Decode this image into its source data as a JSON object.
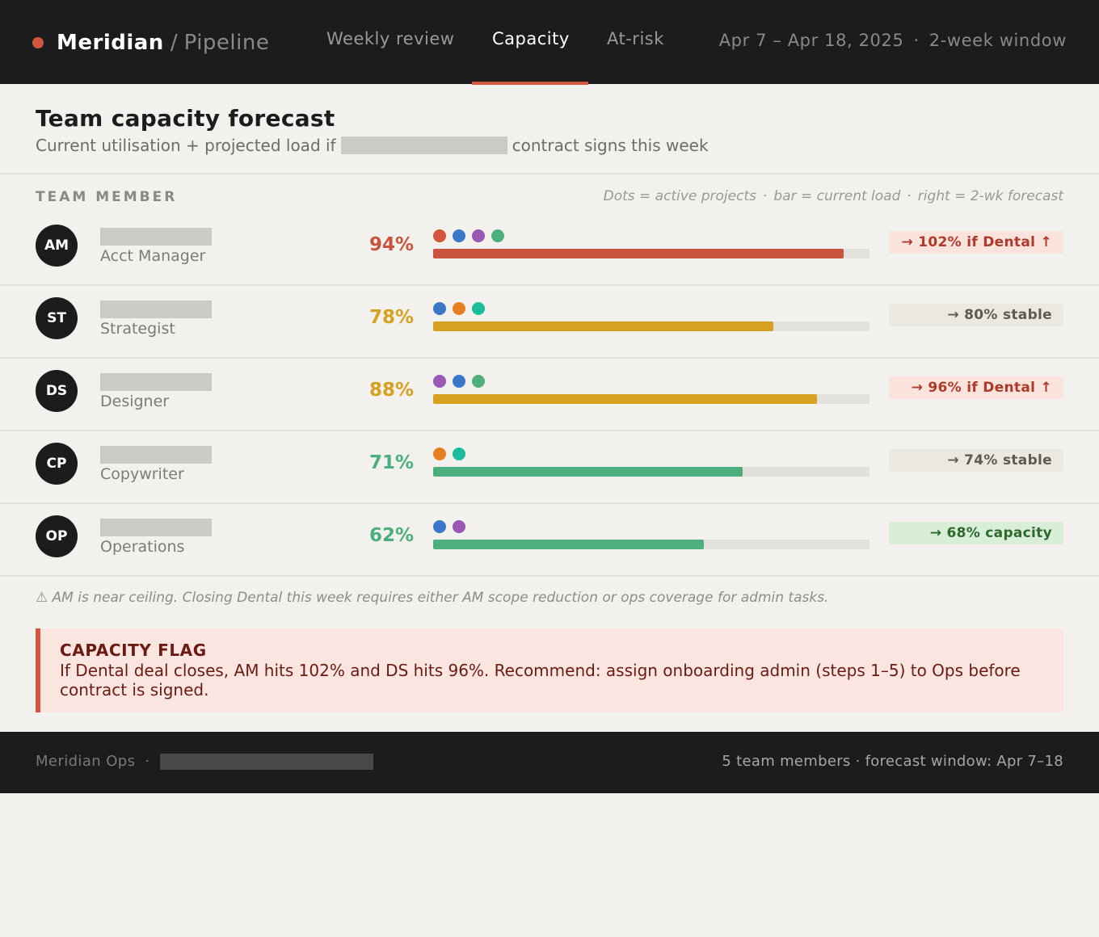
{
  "header": {
    "brand": "Meridian",
    "separator": "/",
    "section": "Pipeline",
    "brand_color": "#d2563f",
    "tabs": [
      {
        "label": "Weekly review",
        "active": false
      },
      {
        "label": "Capacity",
        "active": true
      },
      {
        "label": "At-risk",
        "active": false
      }
    ],
    "date_range": "Apr 7 – Apr 18, 2025",
    "dot": "·",
    "window": "2-week window"
  },
  "page": {
    "title": "Team capacity forecast",
    "subtitle_before": "Current utilisation + projected load if",
    "subtitle_after": "contract signs this week"
  },
  "table": {
    "column_header": "TEAM MEMBER",
    "legend_dots": "Dots = active projects",
    "legend_bar": "bar = current load",
    "legend_right": "right = 2-wk forecast",
    "legend_sep": "·",
    "rows": [
      {
        "initials": "AM",
        "role": "Acct Manager",
        "load": "94%",
        "load_value": 0.94,
        "bar_color": "#c9533d",
        "pct_color": "#c9533d",
        "projects": [
          "#d2563f",
          "#3c78c8",
          "#9b59b6",
          "#4caf7d"
        ],
        "forecast": "→ 102% if Dental ↑",
        "forecast_kind": "warn"
      },
      {
        "initials": "ST",
        "role": "Strategist",
        "load": "78%",
        "load_value": 0.78,
        "bar_color": "#d6a11e",
        "pct_color": "#d6a11e",
        "projects": [
          "#3c78c8",
          "#e67e22",
          "#1abc9c"
        ],
        "forecast": "→ 80% stable",
        "forecast_kind": "stable"
      },
      {
        "initials": "DS",
        "role": "Designer",
        "load": "88%",
        "load_value": 0.88,
        "bar_color": "#d6a11e",
        "pct_color": "#d6a11e",
        "projects": [
          "#9b59b6",
          "#3c78c8",
          "#4caf7d"
        ],
        "forecast": "→ 96% if Dental ↑",
        "forecast_kind": "warn"
      },
      {
        "initials": "CP",
        "role": "Copywriter",
        "load": "71%",
        "load_value": 0.71,
        "bar_color": "#4caf7d",
        "pct_color": "#4caf7d",
        "projects": [
          "#e67e22",
          "#1abc9c"
        ],
        "forecast": "→ 74% stable",
        "forecast_kind": "stable"
      },
      {
        "initials": "OP",
        "role": "Operations",
        "load": "62%",
        "load_value": 0.62,
        "bar_color": "#4caf7d",
        "pct_color": "#4caf7d",
        "projects": [
          "#3c78c8",
          "#9b59b6"
        ],
        "forecast": "→ 68% capacity",
        "forecast_kind": "good"
      }
    ]
  },
  "note": "⚠ AM is near ceiling. Closing Dental this week requires either AM scope reduction or ops coverage for admin tasks.",
  "flag": {
    "title": "CAPACITY FLAG",
    "text": "If Dental deal closes, AM hits 102% and DS hits 96%. Recommend: assign onboarding admin (steps 1–5) to Ops before contract is signed."
  },
  "footer": {
    "left": "Meridian Ops",
    "sep": "·",
    "right": "5 team members · forecast window: Apr 7–18"
  }
}
